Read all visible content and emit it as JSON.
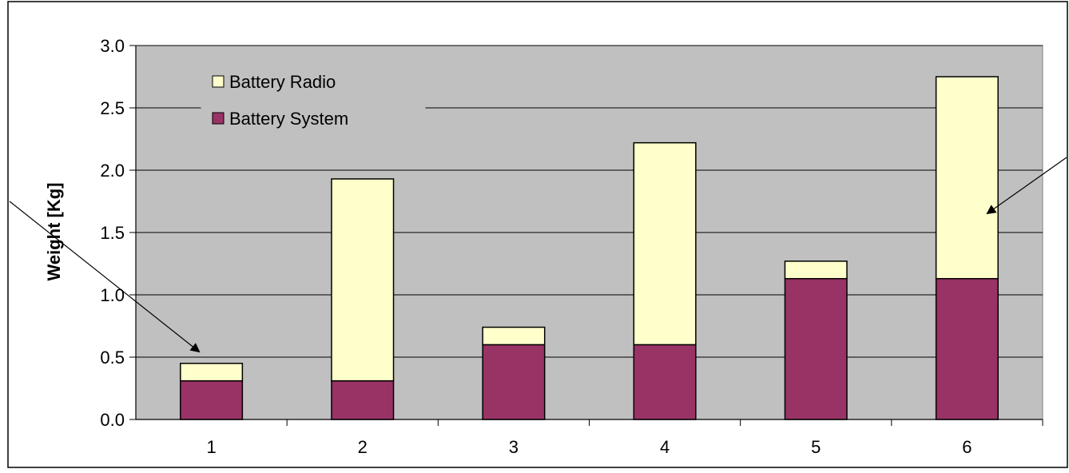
{
  "chart_data": {
    "type": "bar",
    "stacked": true,
    "categories": [
      "1",
      "2",
      "3",
      "4",
      "5",
      "6"
    ],
    "series": [
      {
        "name": "Battery System",
        "values": [
          0.31,
          0.31,
          0.6,
          0.6,
          1.13,
          1.13
        ],
        "color": "#993366"
      },
      {
        "name": "Battery Radio",
        "values": [
          0.14,
          1.62,
          0.14,
          1.62,
          0.14,
          1.62
        ],
        "color": "#FFFFCC"
      }
    ],
    "title": "",
    "xlabel": "",
    "ylabel": "Weight [Kg]",
    "ylim": [
      0,
      3.0
    ],
    "yticks": [
      "0.0",
      "0.5",
      "1.0",
      "1.5",
      "2.0",
      "2.5",
      "3.0"
    ],
    "grid": true,
    "plot_background": "#C0C0C0",
    "legend_placement": "top-left inside",
    "legend_order": [
      "Battery Radio",
      "Battery System"
    ],
    "annotations": [
      "arrow pointing to bar 1",
      "arrow pointing to bar 6"
    ]
  }
}
